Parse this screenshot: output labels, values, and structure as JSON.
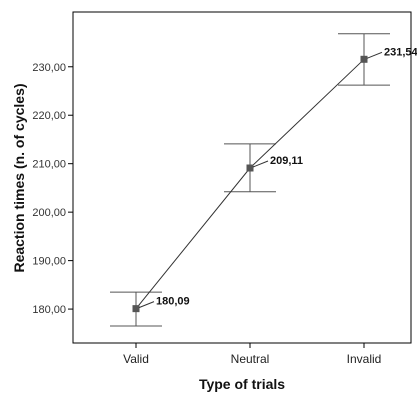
{
  "chart_data": {
    "type": "line",
    "title": "",
    "xlabel": "Type of trials",
    "ylabel": "Reaction times (n. of cycles)",
    "categories": [
      "Valid",
      "Neutral",
      "Invalid"
    ],
    "values": [
      180.09,
      209.11,
      231.54
    ],
    "value_labels": [
      "180,09",
      "209,11",
      "231,54"
    ],
    "error_bars": {
      "lower": [
        176.5,
        204.2,
        226.2
      ],
      "upper": [
        183.5,
        214.1,
        236.8
      ]
    },
    "yticks": [
      180,
      190,
      200,
      210,
      220,
      230
    ],
    "ytick_labels": [
      "180,00",
      "190,00",
      "200,00",
      "210,00",
      "220,00",
      "230,00"
    ],
    "ylim": [
      173.0,
      241.3
    ],
    "grid": false,
    "legend": "none",
    "colors": {
      "line": "#333333",
      "marker": "#555555",
      "error_bar": "#555555",
      "axis": "#000000"
    }
  }
}
